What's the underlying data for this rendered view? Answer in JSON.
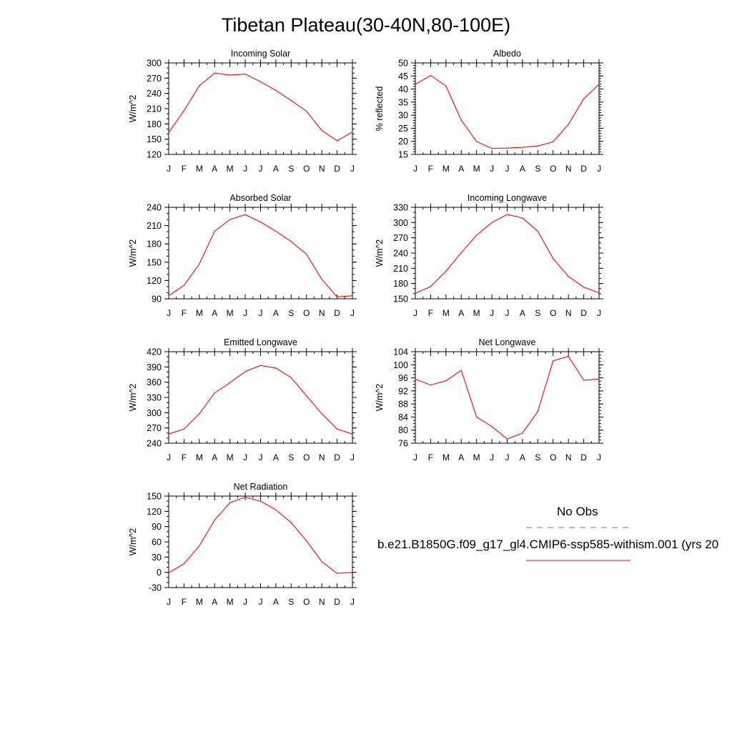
{
  "title": "Tibetan Plateau(30-40N,80-100E)",
  "legend": {
    "obs_label": "No Obs",
    "obs_color": "#6666ee",
    "case_label": "b.e21.B1850G.f09_g17_gl4.CMIP6-ssp585-withism.001 (yrs 20",
    "case_color": "#ff0000"
  },
  "chart_data": [
    {
      "type": "line",
      "title": "Incoming Solar",
      "ylabel": "W/m^2",
      "categories": [
        "J",
        "F",
        "M",
        "A",
        "M",
        "J",
        "J",
        "A",
        "S",
        "O",
        "N",
        "D",
        "J"
      ],
      "ylim": [
        120,
        300
      ],
      "yticks": [
        120,
        150,
        180,
        210,
        240,
        270,
        300
      ],
      "minor_step": 10,
      "series": [
        {
          "values": [
            163,
            206,
            255,
            280,
            276,
            278,
            263,
            246,
            226,
            205,
            167,
            147,
            164
          ],
          "color": "#ff0000"
        }
      ]
    },
    {
      "type": "line",
      "title": "Albedo",
      "ylabel": "% reflected",
      "categories": [
        "J",
        "F",
        "M",
        "A",
        "M",
        "J",
        "J",
        "A",
        "S",
        "O",
        "N",
        "D",
        "J"
      ],
      "ylim": [
        15,
        50
      ],
      "yticks": [
        15,
        20,
        25,
        30,
        35,
        40,
        45,
        50
      ],
      "minor_step": 1,
      "series": [
        {
          "values": [
            41.8,
            45.2,
            41.2,
            28.1,
            19.9,
            17.3,
            17.4,
            17.7,
            18.2,
            19.8,
            26.5,
            36.3,
            41.8
          ],
          "color": "#ff0000"
        }
      ]
    },
    {
      "type": "line",
      "title": "Absorbed Solar",
      "ylabel": "W/m^2",
      "categories": [
        "J",
        "F",
        "M",
        "A",
        "M",
        "J",
        "J",
        "A",
        "S",
        "O",
        "N",
        "D",
        "J"
      ],
      "ylim": [
        90,
        240
      ],
      "yticks": [
        90,
        120,
        150,
        180,
        210,
        240
      ],
      "minor_step": 10,
      "series": [
        {
          "values": [
            95,
            112,
            147,
            201,
            220,
            228,
            216,
            201,
            184,
            163,
            122,
            93,
            95
          ],
          "color": "#ff0000"
        }
      ]
    },
    {
      "type": "line",
      "title": "Incoming Longwave",
      "ylabel": "W/m^2",
      "categories": [
        "J",
        "F",
        "M",
        "A",
        "M",
        "J",
        "J",
        "A",
        "S",
        "O",
        "N",
        "D",
        "J"
      ],
      "ylim": [
        150,
        330
      ],
      "yticks": [
        150,
        180,
        210,
        240,
        270,
        300,
        330
      ],
      "minor_step": 10,
      "series": [
        {
          "values": [
            161,
            174,
            204,
            241,
            275,
            300,
            316,
            309,
            283,
            229,
            194,
            173,
            162
          ],
          "color": "#ff0000"
        }
      ]
    },
    {
      "type": "line",
      "title": "Emitted Longwave",
      "ylabel": "W/m^2",
      "categories": [
        "J",
        "F",
        "M",
        "A",
        "M",
        "J",
        "J",
        "A",
        "S",
        "O",
        "N",
        "D",
        "J"
      ],
      "ylim": [
        240,
        420
      ],
      "yticks": [
        240,
        270,
        300,
        330,
        360,
        390,
        420
      ],
      "minor_step": 10,
      "series": [
        {
          "values": [
            258,
            268,
            298,
            339,
            359,
            381,
            393,
            388,
            369,
            333,
            298,
            268,
            258
          ],
          "color": "#ff0000"
        }
      ]
    },
    {
      "type": "line",
      "title": "Net Longwave",
      "ylabel": "W/m^2",
      "categories": [
        "J",
        "F",
        "M",
        "A",
        "M",
        "J",
        "J",
        "A",
        "S",
        "O",
        "N",
        "D",
        "J"
      ],
      "ylim": [
        76,
        104
      ],
      "yticks": [
        76,
        80,
        84,
        88,
        92,
        96,
        100,
        104
      ],
      "minor_step": 1,
      "series": [
        {
          "values": [
            95.6,
            93.8,
            95.1,
            98.3,
            84.0,
            81.1,
            77.3,
            79.1,
            85.7,
            101.2,
            102.6,
            95.3,
            95.6
          ],
          "color": "#ff0000"
        }
      ]
    },
    {
      "type": "line",
      "title": "Net Radiation",
      "ylabel": "W/m^2",
      "categories": [
        "J",
        "F",
        "M",
        "A",
        "M",
        "J",
        "J",
        "A",
        "S",
        "O",
        "N",
        "D",
        "J"
      ],
      "ylim": [
        -30,
        150
      ],
      "yticks": [
        -30,
        0,
        30,
        60,
        90,
        120,
        150
      ],
      "minor_step": 10,
      "series": [
        {
          "values": [
            -1,
            17,
            52,
            103,
            137,
            148,
            140,
            123,
            98,
            62,
            21,
            -2,
            0
          ],
          "color": "#ff0000"
        }
      ]
    }
  ]
}
